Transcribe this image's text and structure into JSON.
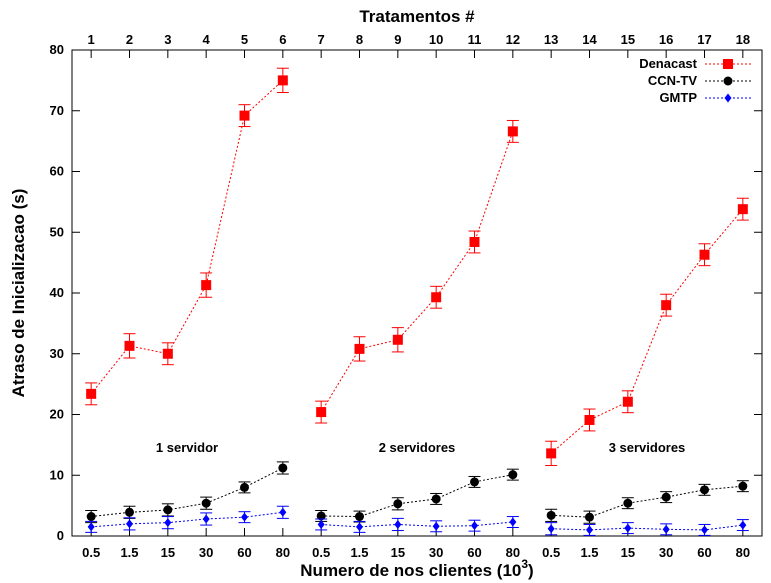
{
  "chart_data": {
    "type": "line",
    "title": "Tratamentos #",
    "xlabel": "Numero de nos clientes (10",
    "xlabel_superscript": "3",
    "ylabel": "Atraso de Inicializacao (s)",
    "ylim": [
      0,
      80
    ],
    "y_ticks": [
      0,
      10,
      20,
      30,
      40,
      50,
      60,
      70,
      80
    ],
    "x_positions": [
      1,
      2,
      3,
      4,
      5,
      6,
      7,
      8,
      9,
      10,
      11,
      12,
      13,
      14,
      15,
      16,
      17,
      18
    ],
    "top_tick_labels": [
      "1",
      "2",
      "3",
      "4",
      "5",
      "6",
      "7",
      "8",
      "9",
      "10",
      "11",
      "12",
      "13",
      "14",
      "15",
      "16",
      "17",
      "18"
    ],
    "bottom_tick_labels": [
      "0.5",
      "1.5",
      "15",
      "30",
      "60",
      "80",
      "0.5",
      "1.5",
      "15",
      "30",
      "60",
      "80",
      "0.5",
      "1.5",
      "15",
      "30",
      "60",
      "80"
    ],
    "groups": [
      {
        "label": "1 servidor",
        "x_center": 3.5,
        "y": 14.5
      },
      {
        "label": "2 servidores",
        "x_center": 9.5,
        "y": 14.5
      },
      {
        "label": "3 servidores",
        "x_center": 15.5,
        "y": 14.5
      }
    ],
    "legend_position": "top-right",
    "grid": false,
    "series": [
      {
        "name": "Denacast",
        "color": "#ff0000",
        "marker": "square",
        "values": [
          23.4,
          31.3,
          30.0,
          41.3,
          69.2,
          75.0,
          20.4,
          30.8,
          32.3,
          39.3,
          48.4,
          66.6,
          13.6,
          19.1,
          22.1,
          38.0,
          46.3,
          53.8
        ],
        "errors": [
          1.8,
          2.0,
          1.8,
          2.0,
          1.8,
          2.0,
          1.8,
          2.0,
          2.0,
          1.8,
          1.8,
          1.8,
          2.0,
          1.8,
          1.8,
          1.8,
          1.8,
          1.8
        ]
      },
      {
        "name": "CCN-TV",
        "color": "#000000",
        "marker": "circle",
        "values": [
          3.2,
          3.9,
          4.3,
          5.4,
          8.0,
          11.2,
          3.3,
          3.2,
          5.3,
          6.1,
          8.9,
          10.1,
          3.4,
          3.1,
          5.4,
          6.4,
          7.6,
          8.2
        ],
        "errors": [
          1.0,
          1.0,
          1.0,
          1.0,
          0.9,
          1.0,
          0.9,
          0.9,
          1.0,
          0.9,
          0.9,
          0.9,
          1.0,
          1.0,
          0.9,
          0.9,
          0.9,
          0.9
        ]
      },
      {
        "name": "GMTP",
        "color": "#0000ff",
        "marker": "diamond",
        "values": [
          1.5,
          2.0,
          2.2,
          2.8,
          3.1,
          3.9,
          1.9,
          1.5,
          1.9,
          1.6,
          1.7,
          2.3,
          1.2,
          1.0,
          1.3,
          1.1,
          1.0,
          1.8
        ],
        "errors": [
          0.9,
          1.0,
          1.0,
          1.0,
          0.9,
          1.0,
          0.9,
          0.9,
          1.0,
          0.9,
          0.9,
          0.9,
          1.0,
          0.9,
          0.9,
          0.9,
          0.9,
          0.9
        ]
      }
    ]
  }
}
